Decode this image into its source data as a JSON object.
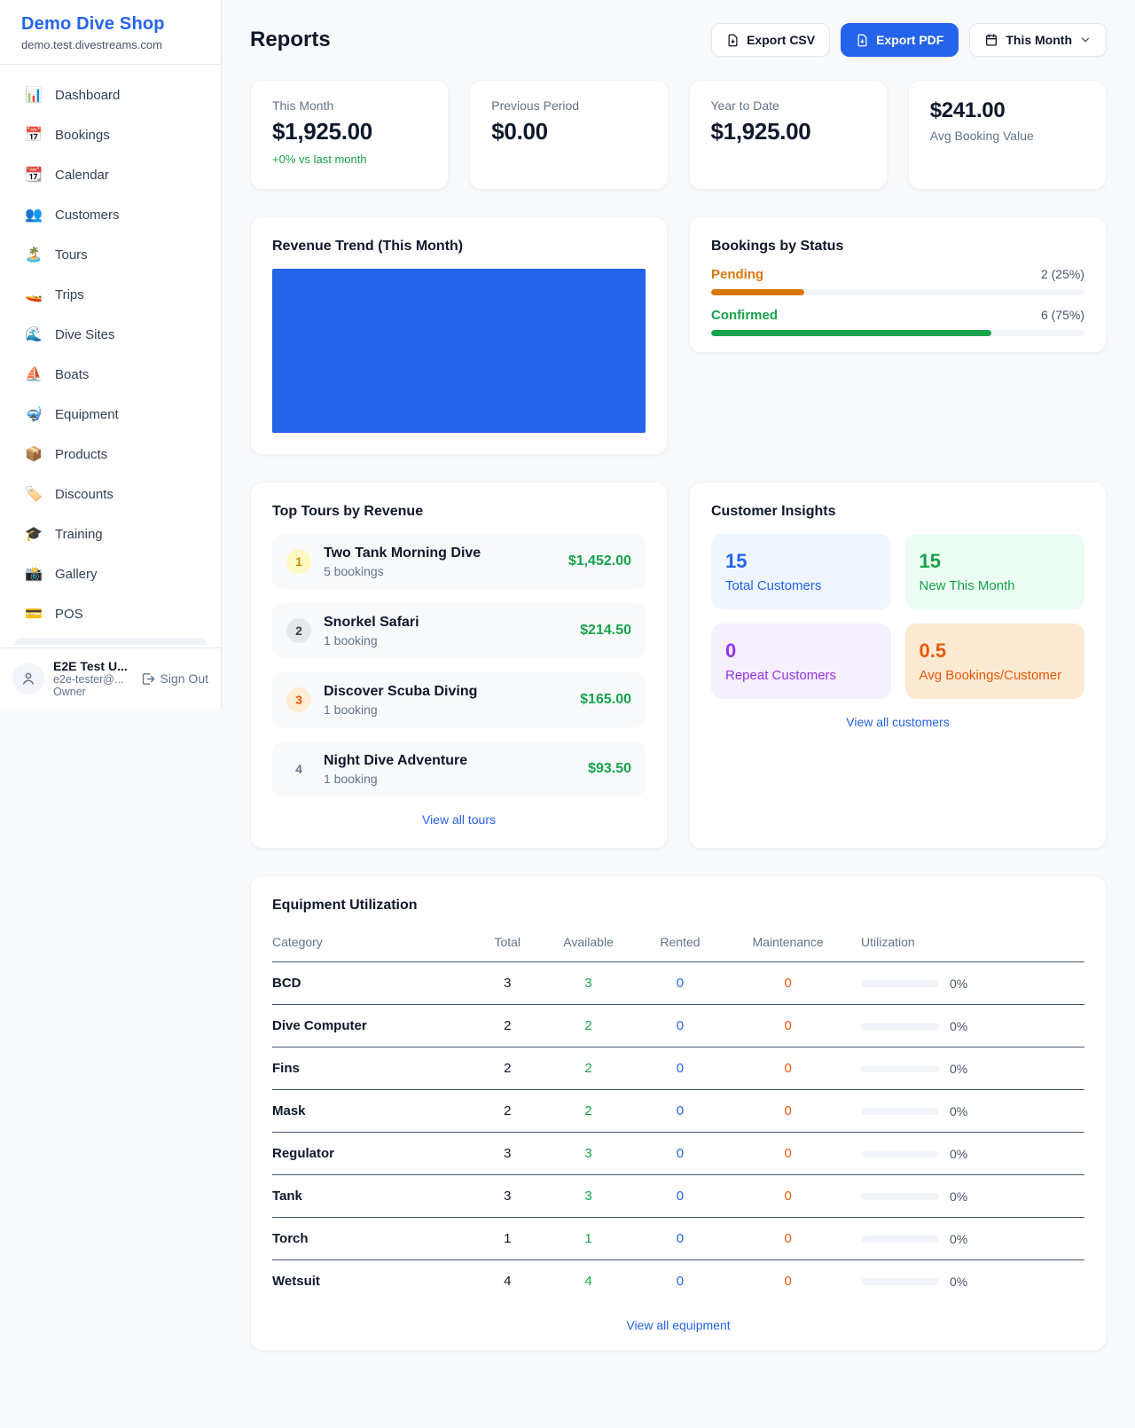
{
  "colors": {
    "accent_blue": "#2563eb",
    "green": "#16a34a",
    "amber": "#d97706",
    "orange": "#ea580c",
    "purple": "#9333ea",
    "page_bg": "#f8fafc"
  },
  "brand": {
    "name": "Demo Dive Shop",
    "domain": "demo.test.divestreams.com"
  },
  "sidebar": {
    "items": [
      {
        "icon": "📊",
        "label": "Dashboard"
      },
      {
        "icon": "📅",
        "label": "Bookings"
      },
      {
        "icon": "📆",
        "label": "Calendar"
      },
      {
        "icon": "👥",
        "label": "Customers"
      },
      {
        "icon": "🏝️",
        "label": "Tours"
      },
      {
        "icon": "🚤",
        "label": "Trips"
      },
      {
        "icon": "🌊",
        "label": "Dive Sites"
      },
      {
        "icon": "⛵",
        "label": "Boats"
      },
      {
        "icon": "🤿",
        "label": "Equipment"
      },
      {
        "icon": "📦",
        "label": "Products"
      },
      {
        "icon": "🏷️",
        "label": "Discounts"
      },
      {
        "icon": "🎓",
        "label": "Training"
      },
      {
        "icon": "📸",
        "label": "Gallery"
      },
      {
        "icon": "💳",
        "label": "POS"
      }
    ],
    "user": {
      "name": "E2E Test U...",
      "email": "e2e-tester@...",
      "role": "Owner",
      "sign_out": "Sign Out"
    }
  },
  "header": {
    "title": "Reports",
    "export_csv": "Export CSV",
    "export_pdf": "Export PDF",
    "period": "This Month"
  },
  "stats": [
    {
      "label": "This Month",
      "value": "$1,925.00",
      "note": "+0% vs last month"
    },
    {
      "label": "Previous Period",
      "value": "$0.00"
    },
    {
      "label": "Year to Date",
      "value": "$1,925.00"
    },
    {
      "label": "Avg Booking Value",
      "value": "$241.00"
    }
  ],
  "revenue_trend": {
    "title": "Revenue Trend (This Month)"
  },
  "bookings_by_status": {
    "title": "Bookings by Status",
    "rows": [
      {
        "label": "Pending",
        "count": "2 (25%)",
        "pct": 25
      },
      {
        "label": "Confirmed",
        "count": "6 (75%)",
        "pct": 75
      }
    ]
  },
  "top_tours": {
    "title": "Top Tours by Revenue",
    "items": [
      {
        "rank": "1",
        "name": "Two Tank Morning Dive",
        "bookings": "5 bookings",
        "revenue": "$1,452.00"
      },
      {
        "rank": "2",
        "name": "Snorkel Safari",
        "bookings": "1 booking",
        "revenue": "$214.50"
      },
      {
        "rank": "3",
        "name": "Discover Scuba Diving",
        "bookings": "1 booking",
        "revenue": "$165.00"
      },
      {
        "rank": "4",
        "name": "Night Dive Adventure",
        "bookings": "1 booking",
        "revenue": "$93.50"
      }
    ],
    "view_all": "View all tours"
  },
  "customer_insights": {
    "title": "Customer Insights",
    "tiles": [
      {
        "value": "15",
        "label": "Total Customers"
      },
      {
        "value": "15",
        "label": "New This Month"
      },
      {
        "value": "0",
        "label": "Repeat Customers"
      },
      {
        "value": "0.5",
        "label": "Avg Bookings/Customer"
      }
    ],
    "view_all": "View all customers"
  },
  "equipment": {
    "title": "Equipment Utilization",
    "columns": [
      "Category",
      "Total",
      "Available",
      "Rented",
      "Maintenance",
      "Utilization"
    ],
    "rows": [
      [
        "BCD",
        "3",
        "3",
        "0",
        "0",
        "0%"
      ],
      [
        "Dive Computer",
        "2",
        "2",
        "0",
        "0",
        "0%"
      ],
      [
        "Fins",
        "2",
        "2",
        "0",
        "0",
        "0%"
      ],
      [
        "Mask",
        "2",
        "2",
        "0",
        "0",
        "0%"
      ],
      [
        "Regulator",
        "3",
        "3",
        "0",
        "0",
        "0%"
      ],
      [
        "Tank",
        "3",
        "3",
        "0",
        "0",
        "0%"
      ],
      [
        "Torch",
        "1",
        "1",
        "0",
        "0",
        "0%"
      ],
      [
        "Wetsuit",
        "4",
        "4",
        "0",
        "0",
        "0%"
      ]
    ],
    "view_all": "View all equipment"
  },
  "chart_data": [
    {
      "type": "bar",
      "title": "Revenue Trend (This Month)",
      "values": [
        1925
      ],
      "note": "single solid full-width blue bar, no axes or labels visible",
      "color": "#2563eb"
    },
    {
      "type": "bar",
      "title": "Bookings by Status",
      "categories": [
        "Pending",
        "Confirmed"
      ],
      "values": [
        2,
        6
      ],
      "percents": [
        25,
        75
      ],
      "colors": [
        "#d97706",
        "#16a34a"
      ]
    }
  ]
}
